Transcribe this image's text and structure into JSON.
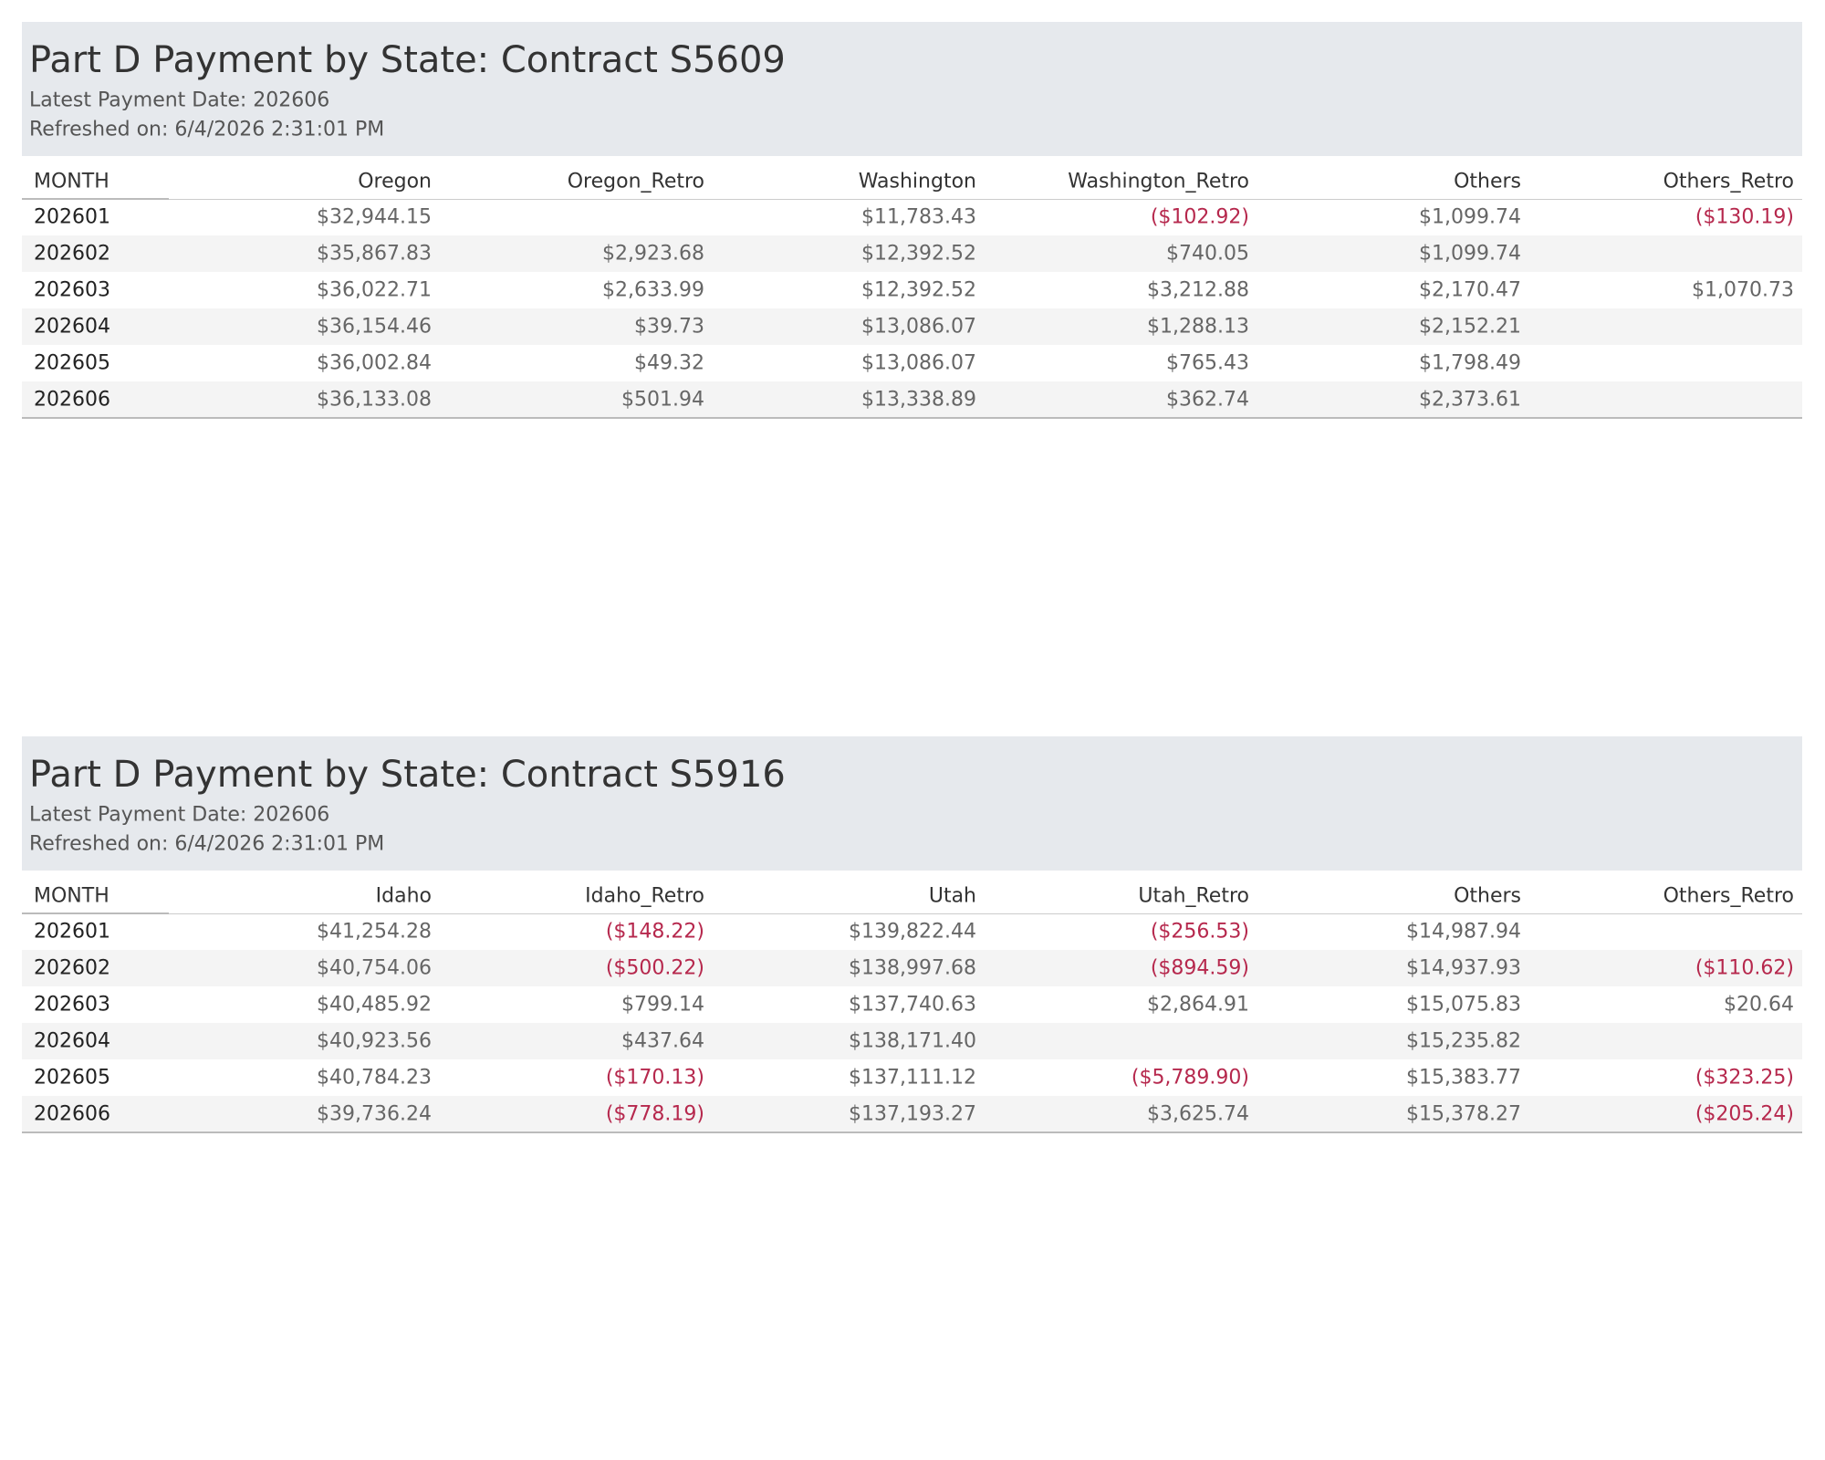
{
  "panels": [
    {
      "title": "Part D Payment by State: Contract S5609",
      "latest": "Latest Payment Date: 202606",
      "refreshed": "Refreshed on: 6/4/2026 2:31:01 PM",
      "columns": [
        "MONTH",
        "Oregon",
        "Oregon_Retro",
        "Washington",
        "Washington_Retro",
        "Others",
        "Others_Retro"
      ],
      "rows": [
        [
          "202601",
          "$32,944.15",
          null,
          "$11,783.43",
          "($102.92)",
          "$1,099.74",
          "($130.19)"
        ],
        [
          "202602",
          "$35,867.83",
          "$2,923.68",
          "$12,392.52",
          "$740.05",
          "$1,099.74",
          null
        ],
        [
          "202603",
          "$36,022.71",
          "$2,633.99",
          "$12,392.52",
          "$3,212.88",
          "$2,170.47",
          "$1,070.73"
        ],
        [
          "202604",
          "$36,154.46",
          "$39.73",
          "$13,086.07",
          "$1,288.13",
          "$2,152.21",
          null
        ],
        [
          "202605",
          "$36,002.84",
          "$49.32",
          "$13,086.07",
          "$765.43",
          "$1,798.49",
          null
        ],
        [
          "202606",
          "$36,133.08",
          "$501.94",
          "$13,338.89",
          "$362.74",
          "$2,373.61",
          null
        ]
      ]
    },
    {
      "title": "Part D Payment by State: Contract S5916",
      "latest": "Latest Payment Date: 202606",
      "refreshed": "Refreshed on: 6/4/2026 2:31:01 PM",
      "columns": [
        "MONTH",
        "Idaho",
        "Idaho_Retro",
        "Utah",
        "Utah_Retro",
        "Others",
        "Others_Retro"
      ],
      "rows": [
        [
          "202601",
          "$41,254.28",
          "($148.22)",
          "$139,822.44",
          "($256.53)",
          "$14,987.94",
          null
        ],
        [
          "202602",
          "$40,754.06",
          "($500.22)",
          "$138,997.68",
          "($894.59)",
          "$14,937.93",
          "($110.62)"
        ],
        [
          "202603",
          "$40,485.92",
          "$799.14",
          "$137,740.63",
          "$2,864.91",
          "$15,075.83",
          "$20.64"
        ],
        [
          "202604",
          "$40,923.56",
          "$437.64",
          "$138,171.40",
          null,
          "$15,235.82",
          null
        ],
        [
          "202605",
          "$40,784.23",
          "($170.13)",
          "$137,111.12",
          "($5,789.90)",
          "$15,383.77",
          "($323.25)"
        ],
        [
          "202606",
          "$39,736.24",
          "($778.19)",
          "$137,193.27",
          "$3,625.74",
          "$15,378.27",
          "($205.24)"
        ]
      ]
    }
  ]
}
